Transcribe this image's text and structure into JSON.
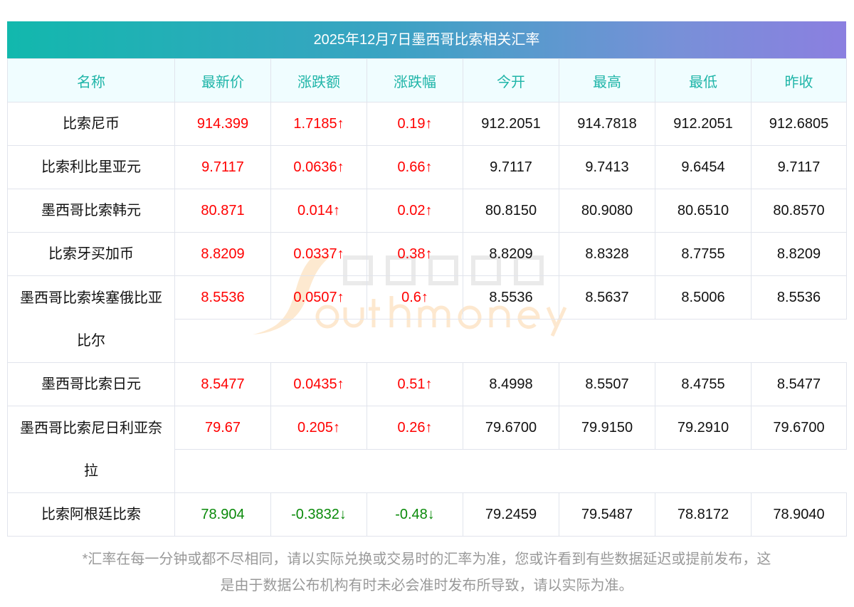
{
  "title": "2025年12月7日墨西哥比索相关汇率",
  "columns": [
    "名称",
    "最新价",
    "涨跌额",
    "涨跌幅",
    "今开",
    "最高",
    "最低",
    "昨收"
  ],
  "rows": [
    {
      "name": "比索尼币",
      "name2": "",
      "dir": "up",
      "latest": "914.399",
      "change": "1.7185↑",
      "pct": "0.19↑",
      "open": "912.2051",
      "high": "914.7818",
      "low": "912.2051",
      "prev": "912.6805"
    },
    {
      "name": "比索利比里亚元",
      "name2": "",
      "dir": "up",
      "latest": "9.7117",
      "change": "0.0636↑",
      "pct": "0.66↑",
      "open": "9.7117",
      "high": "9.7413",
      "low": "9.6454",
      "prev": "9.7117"
    },
    {
      "name": "墨西哥比索韩元",
      "name2": "",
      "dir": "up",
      "latest": "80.871",
      "change": "0.014↑",
      "pct": "0.02↑",
      "open": "80.8150",
      "high": "80.9080",
      "low": "80.6510",
      "prev": "80.8570"
    },
    {
      "name": "比索牙买加币",
      "name2": "",
      "dir": "up",
      "latest": "8.8209",
      "change": "0.0337↑",
      "pct": "0.38↑",
      "open": "8.8209",
      "high": "8.8328",
      "low": "8.7755",
      "prev": "8.8209"
    },
    {
      "name": "墨西哥比索埃塞俄比亚",
      "name2": "比尔",
      "dir": "up",
      "latest": "8.5536",
      "change": "0.0507↑",
      "pct": "0.6↑",
      "open": "8.5536",
      "high": "8.5637",
      "low": "8.5006",
      "prev": "8.5536"
    },
    {
      "name": "墨西哥比索日元",
      "name2": "",
      "dir": "up",
      "latest": "8.5477",
      "change": "0.0435↑",
      "pct": "0.51↑",
      "open": "8.4998",
      "high": "8.5507",
      "low": "8.4755",
      "prev": "8.5477"
    },
    {
      "name": "墨西哥比索尼日利亚奈",
      "name2": "拉",
      "dir": "up",
      "latest": "79.67",
      "change": "0.205↑",
      "pct": "0.26↑",
      "open": "79.6700",
      "high": "79.9150",
      "low": "79.2910",
      "prev": "79.6700"
    },
    {
      "name": "比索阿根廷比索",
      "name2": "",
      "dir": "down",
      "latest": "78.904",
      "change": "-0.3832↓",
      "pct": "-0.48↓",
      "open": "79.2459",
      "high": "79.5487",
      "low": "78.8172",
      "prev": "78.9040"
    }
  ],
  "watermark": {
    "cn": "南方财富网",
    "en": "outhmoney.com"
  },
  "footer": {
    "line1": "*汇率在每一分钟或都不尽相同，请以实际兑换或交易时的汇率为准，您或许看到有些数据延迟或提前发布，这",
    "line2": "是由于数据公布机构有时未必会准时发布所导致，请以实际为准。"
  },
  "colors": {
    "up": "#ff0000",
    "down": "#0a8a0a",
    "header_text": "#1fb5a8"
  }
}
